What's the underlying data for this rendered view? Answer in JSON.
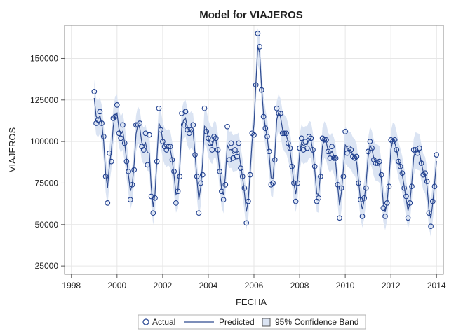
{
  "chart_data": {
    "type": "line",
    "title": "Model for VIAJEROS",
    "xlabel": "FECHA",
    "ylabel": "VIAJEROS",
    "xlim": [
      1997.7,
      2014.3
    ],
    "ylim": [
      20000,
      170000
    ],
    "x_ticks": [
      "1998",
      "2000",
      "2002",
      "2004",
      "2006",
      "2008",
      "2010",
      "2012",
      "2014"
    ],
    "y_ticks": [
      "25000",
      "50000",
      "75000",
      "100000",
      "125000",
      "150000"
    ],
    "grid": true,
    "legend_position": "bottom",
    "start_year": 1999,
    "start_month": 1,
    "series": [
      {
        "name": "Actual",
        "style": "circle-markers",
        "color": "#1f3f8f",
        "values": [
          130000,
          111000,
          113000,
          118000,
          111000,
          103000,
          79000,
          63000,
          93000,
          88000,
          114000,
          115000,
          122000,
          105000,
          102000,
          110000,
          99000,
          88000,
          82000,
          65000,
          74000,
          83000,
          110000,
          110000,
          111000,
          97000,
          95000,
          105000,
          86000,
          104000,
          67000,
          57000,
          66000,
          88000,
          120000,
          107000,
          100000,
          97000,
          95000,
          97000,
          97000,
          89000,
          82000,
          63000,
          70000,
          79000,
          117000,
          110000,
          118000,
          107000,
          105000,
          107000,
          110000,
          92000,
          79000,
          57000,
          75000,
          80000,
          120000,
          106000,
          102000,
          99000,
          95000,
          103000,
          102000,
          95000,
          82000,
          70000,
          65000,
          74000,
          109000,
          89000,
          99000,
          90000,
          95000,
          91000,
          99000,
          84000,
          79000,
          72000,
          51000,
          64000,
          80000,
          105000,
          104000,
          134000,
          165000,
          157000,
          131000,
          115000,
          108000,
          103000,
          94000,
          74000,
          75000,
          89000,
          120000,
          117000,
          117000,
          105000,
          105000,
          105000,
          99000,
          96000,
          85000,
          75000,
          64000,
          75000,
          96000,
          102000,
          95000,
          100000,
          96000,
          103000,
          102000,
          95000,
          85000,
          64000,
          66000,
          79000,
          102000,
          101000,
          101000,
          94000,
          90000,
          97000,
          90000,
          90000,
          74000,
          54000,
          72000,
          79000,
          106000,
          93000,
          96000,
          95000,
          91000,
          90000,
          91000,
          75000,
          65000,
          55000,
          66000,
          72000,
          94000,
          100000,
          96000,
          89000,
          87000,
          87000,
          88000,
          80000,
          60000,
          55000,
          63000,
          73000,
          101000,
          100000,
          101000,
          95000,
          88000,
          85000,
          81000,
          72000,
          67000,
          54000,
          63000,
          73000,
          95000,
          95000,
          93000,
          96000,
          87000,
          80000,
          81000,
          76000,
          57000,
          49000,
          64000,
          73000,
          92000
        ]
      },
      {
        "name": "Predicted",
        "style": "line",
        "color": "#2e4a8f"
      },
      {
        "name": "95% Confidence Band",
        "style": "band",
        "color": "#dbe4f3",
        "half_width": 11000
      }
    ]
  }
}
